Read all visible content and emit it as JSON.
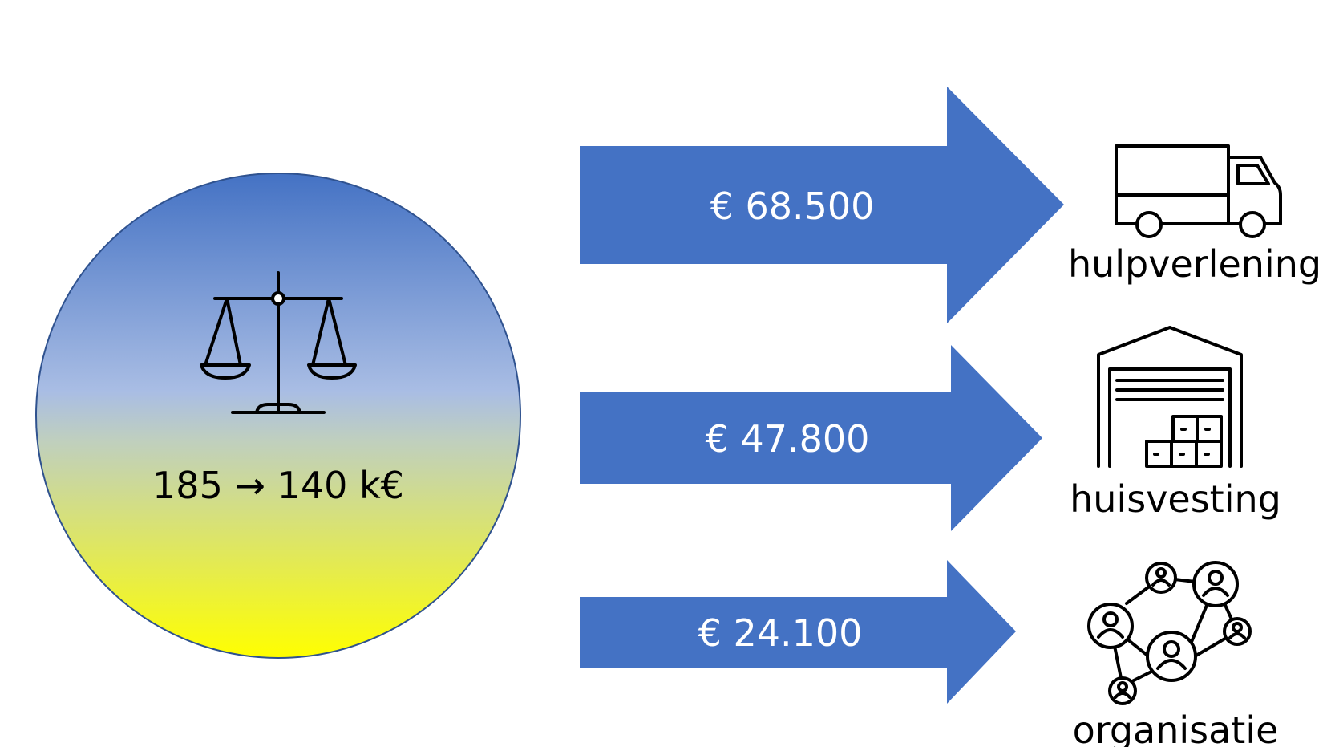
{
  "budget": {
    "label": "185 → 140 k€",
    "icon": "scales-icon",
    "gradient_top": "#4472c4",
    "gradient_mid": "#b4c7e7",
    "gradient_bottom": "#ffff00"
  },
  "arrow_color": "#4472c4",
  "allocations": [
    {
      "amount": "€ 68.500",
      "category": "hulpverlening",
      "icon": "truck-icon"
    },
    {
      "amount": "€ 47.800",
      "category": "huisvesting",
      "icon": "warehouse-icon"
    },
    {
      "amount": "€ 24.100",
      "category": "organisatie",
      "icon": "network-people-icon"
    }
  ]
}
